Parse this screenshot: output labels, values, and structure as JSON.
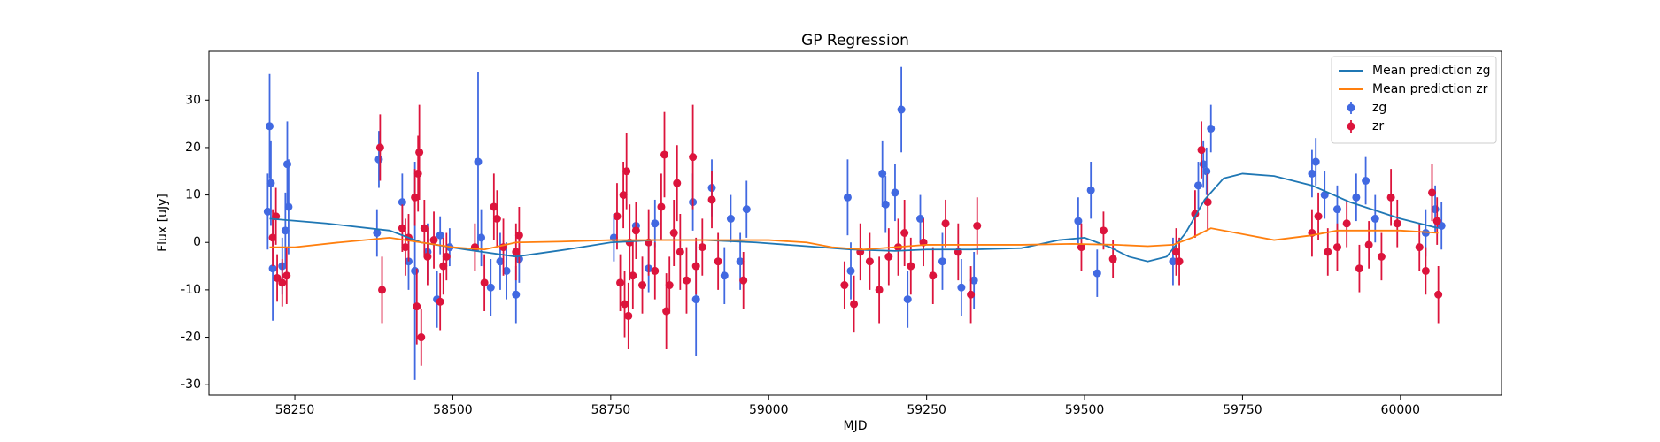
{
  "chart_data": {
    "type": "line",
    "title": "GP Regression",
    "x_label": "MJD",
    "y_label": "Flux [uJy]",
    "xlim": [
      58114,
      60160
    ],
    "ylim": [
      -32.2,
      40.3
    ],
    "xticks": [
      58250,
      58500,
      58750,
      59000,
      59250,
      59500,
      59750,
      60000
    ],
    "yticks": [
      -30,
      -20,
      -10,
      0,
      10,
      20,
      30
    ],
    "legend": "upper right",
    "series": [
      {
        "name": "Mean prediction zg",
        "type": "line",
        "color": "#1f77b4",
        "x": [
          58210,
          58300,
          58400,
          58450,
          58520,
          58600,
          58680,
          58750,
          58820,
          58900,
          58980,
          59060,
          59130,
          59200,
          59250,
          59320,
          59400,
          59460,
          59500,
          59540,
          59570,
          59600,
          59630,
          59660,
          59690,
          59720,
          59750,
          59800,
          59860,
          59920,
          60000,
          60060
        ],
        "values": [
          5,
          4,
          2.5,
          0,
          -1.5,
          -3,
          -1.5,
          0,
          0.5,
          0.5,
          0,
          -0.8,
          -1.5,
          -1.8,
          -1.5,
          -1.5,
          -1.2,
          0.5,
          1,
          -1,
          -3,
          -4,
          -3,
          2,
          9,
          13.5,
          14.5,
          14,
          12,
          8.5,
          5,
          3
        ]
      },
      {
        "name": "Mean prediction zr",
        "type": "line",
        "color": "#ff7f0e",
        "x": [
          58210,
          58250,
          58320,
          58400,
          58450,
          58500,
          58550,
          58600,
          58680,
          58750,
          58820,
          58900,
          59000,
          59060,
          59100,
          59150,
          59200,
          59250,
          59330,
          59400,
          59480,
          59550,
          59600,
          59640,
          59670,
          59700,
          59740,
          59800,
          59860,
          59900,
          59960,
          60000,
          60060
        ],
        "values": [
          -1,
          -1,
          0,
          1,
          0,
          -1,
          -1.5,
          0,
          0.2,
          0.5,
          0.5,
          0.5,
          0.5,
          0,
          -1,
          -1.5,
          -1,
          -0.5,
          -0.5,
          -0.5,
          -0.3,
          -0.5,
          -0.8,
          -0.5,
          1,
          3,
          2,
          0.5,
          1.5,
          2.5,
          2.5,
          2.5,
          2
        ]
      },
      {
        "name": "zg",
        "type": "errorbar",
        "color": "#4169e1",
        "x": [
          58207,
          58210,
          58212,
          58215,
          58230,
          58235,
          58238,
          58240,
          58380,
          58383,
          58420,
          58430,
          58440,
          58460,
          58475,
          58480,
          58495,
          58540,
          58545,
          58560,
          58575,
          58585,
          58600,
          58605,
          58755,
          58790,
          58810,
          58820,
          58880,
          58885,
          58910,
          58930,
          58940,
          58955,
          58965,
          59125,
          59130,
          59180,
          59185,
          59200,
          59210,
          59220,
          59240,
          59275,
          59305,
          59325,
          59490,
          59510,
          59520,
          59640,
          59680,
          59688,
          59693,
          59700,
          59860,
          59866,
          59880,
          59900,
          59930,
          59945,
          59960,
          60040,
          60055,
          60065
        ],
        "values": [
          6.5,
          24.5,
          12.5,
          -5.5,
          -5,
          2.5,
          16.5,
          7.5,
          2,
          17.5,
          8.5,
          -4,
          -6,
          -2,
          -12,
          1.5,
          -1,
          17,
          1,
          -9.5,
          -4,
          -6,
          -11,
          -3.5,
          1,
          3.5,
          -5.5,
          4,
          8.5,
          -12,
          11.5,
          -7,
          5,
          -4,
          7,
          9.5,
          -6,
          14.5,
          8,
          10.5,
          28,
          -12,
          5,
          -4,
          -9.5,
          -8,
          4.5,
          11,
          -6.5,
          -4,
          12,
          16.5,
          15,
          24,
          14.5,
          17,
          10,
          7,
          9.5,
          13,
          5,
          2,
          7,
          3.5
        ],
        "errors": [
          8,
          11,
          9,
          11,
          6,
          8,
          9,
          10,
          5,
          6,
          6,
          6,
          23,
          6,
          6,
          4,
          4,
          19,
          6,
          6,
          6,
          6,
          6,
          5,
          5,
          5,
          5,
          5,
          6,
          12,
          6,
          6,
          5,
          6,
          6,
          8,
          6,
          7,
          6,
          6,
          9,
          6,
          5,
          6,
          6,
          6,
          5,
          6,
          5,
          5,
          5,
          5,
          5,
          5,
          5,
          5,
          5,
          5,
          5,
          5,
          5,
          5,
          5,
          5
        ]
      },
      {
        "name": "zr",
        "type": "errorbar",
        "color": "#dc143c",
        "x": [
          58215,
          58220,
          58222,
          58230,
          58237,
          58385,
          58388,
          58420,
          58425,
          58430,
          58440,
          58443,
          58445,
          58447,
          58450,
          58455,
          58460,
          58470,
          58480,
          58485,
          58490,
          58535,
          58550,
          58565,
          58570,
          58580,
          58600,
          58605,
          58760,
          58765,
          58770,
          58772,
          58775,
          58778,
          58780,
          58785,
          58790,
          58800,
          58810,
          58820,
          58830,
          58835,
          58838,
          58843,
          58850,
          58855,
          58860,
          58870,
          58880,
          58885,
          58895,
          58910,
          58920,
          58960,
          59120,
          59135,
          59145,
          59160,
          59175,
          59190,
          59205,
          59215,
          59225,
          59245,
          59260,
          59280,
          59300,
          59320,
          59330,
          59495,
          59530,
          59545,
          59645,
          59650,
          59675,
          59685,
          59695,
          59860,
          59870,
          59885,
          59900,
          59915,
          59935,
          59950,
          59970,
          59985,
          59995,
          60030,
          60040,
          60050,
          60058,
          60060
        ],
        "values": [
          1,
          5.5,
          -7.5,
          -8.5,
          -7,
          20,
          -10,
          3,
          -1,
          1,
          9.5,
          -13.5,
          14.5,
          19,
          -20,
          3,
          -3,
          0.5,
          -12.5,
          -5,
          -3,
          -1,
          -8.5,
          7.5,
          5,
          -1,
          -2,
          1.5,
          5.5,
          -8.5,
          10,
          -13,
          15,
          -15.5,
          0,
          -7,
          2.5,
          -9,
          0,
          -6,
          7.5,
          18.5,
          -14.5,
          -9,
          2,
          12.5,
          -2,
          -8,
          18,
          -5,
          -1,
          9,
          -4,
          -8,
          -9,
          -13,
          -2,
          -4,
          -10,
          -3,
          -1,
          2,
          -5,
          0,
          -7,
          4,
          -2,
          -11,
          3.5,
          -1,
          2.5,
          -3.5,
          -2,
          -4,
          6,
          19.5,
          8.5,
          2,
          5.5,
          -2,
          -1,
          4,
          -5.5,
          -0.5,
          -3,
          9.5,
          4,
          -1,
          -6,
          10.5,
          4.5,
          -11
        ],
        "errors": [
          6,
          6,
          5,
          5,
          6,
          7,
          7,
          5,
          6,
          5,
          6,
          8,
          8,
          10,
          6,
          6,
          6,
          6,
          6,
          6,
          5,
          5,
          6,
          7,
          6,
          6,
          6,
          6,
          7,
          6,
          7,
          7,
          8,
          7,
          8,
          7,
          6,
          6,
          7,
          6,
          7,
          9,
          8,
          6,
          7,
          8,
          8,
          7,
          11,
          6,
          6,
          6,
          6,
          6,
          5,
          6,
          6,
          6,
          7,
          6,
          6,
          7,
          6,
          5,
          6,
          5,
          6,
          6,
          6,
          5,
          4,
          4,
          5,
          5,
          5,
          6,
          6,
          5,
          5,
          5,
          5,
          5,
          5,
          5,
          5,
          6,
          5,
          5,
          5,
          6,
          5,
          6
        ]
      }
    ]
  }
}
